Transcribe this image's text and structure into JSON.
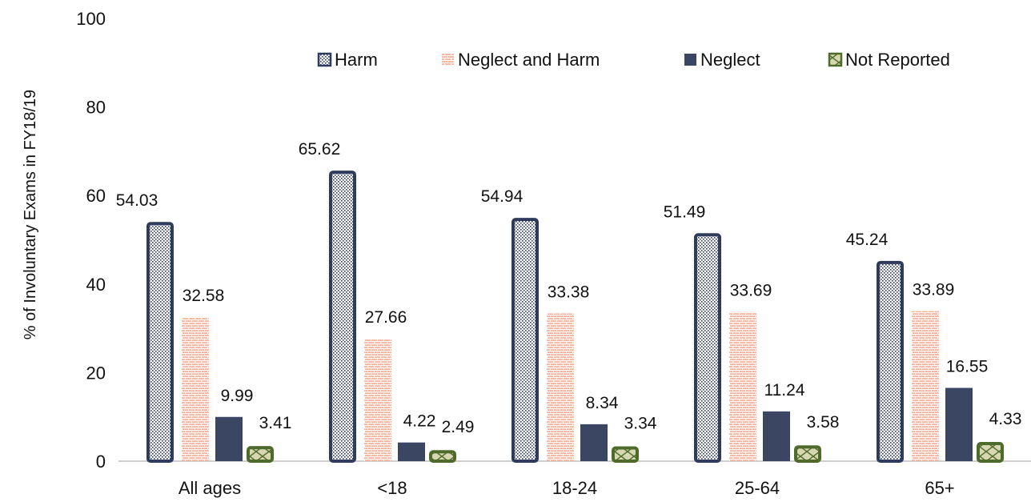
{
  "chart_data": {
    "type": "bar",
    "title": "",
    "xlabel": "",
    "ylabel": "% of Involuntary Exams in FY18/19",
    "ylim": [
      0,
      100
    ],
    "yticks": [
      0,
      20,
      40,
      60,
      80,
      100
    ],
    "grid": false,
    "legend_position": "top",
    "categories": [
      "All ages",
      "<18",
      "18-24",
      "25-64",
      "65+"
    ],
    "series": [
      {
        "name": "Harm",
        "values": [
          54.03,
          65.62,
          54.94,
          51.49,
          45.24
        ],
        "color": "#2f3b5c",
        "pattern": "dots"
      },
      {
        "name": "Neglect and Harm",
        "values": [
          32.58,
          27.66,
          33.38,
          33.69,
          33.89
        ],
        "color": "#e8967a",
        "pattern": "bricks"
      },
      {
        "name": "Neglect",
        "values": [
          9.99,
          4.22,
          8.34,
          11.24,
          16.55
        ],
        "color": "#3b4663",
        "pattern": "solid"
      },
      {
        "name": "Not Reported",
        "values": [
          3.41,
          2.49,
          3.34,
          3.58,
          4.33
        ],
        "color": "#4f6b2c",
        "pattern": "crosshatch"
      }
    ]
  }
}
